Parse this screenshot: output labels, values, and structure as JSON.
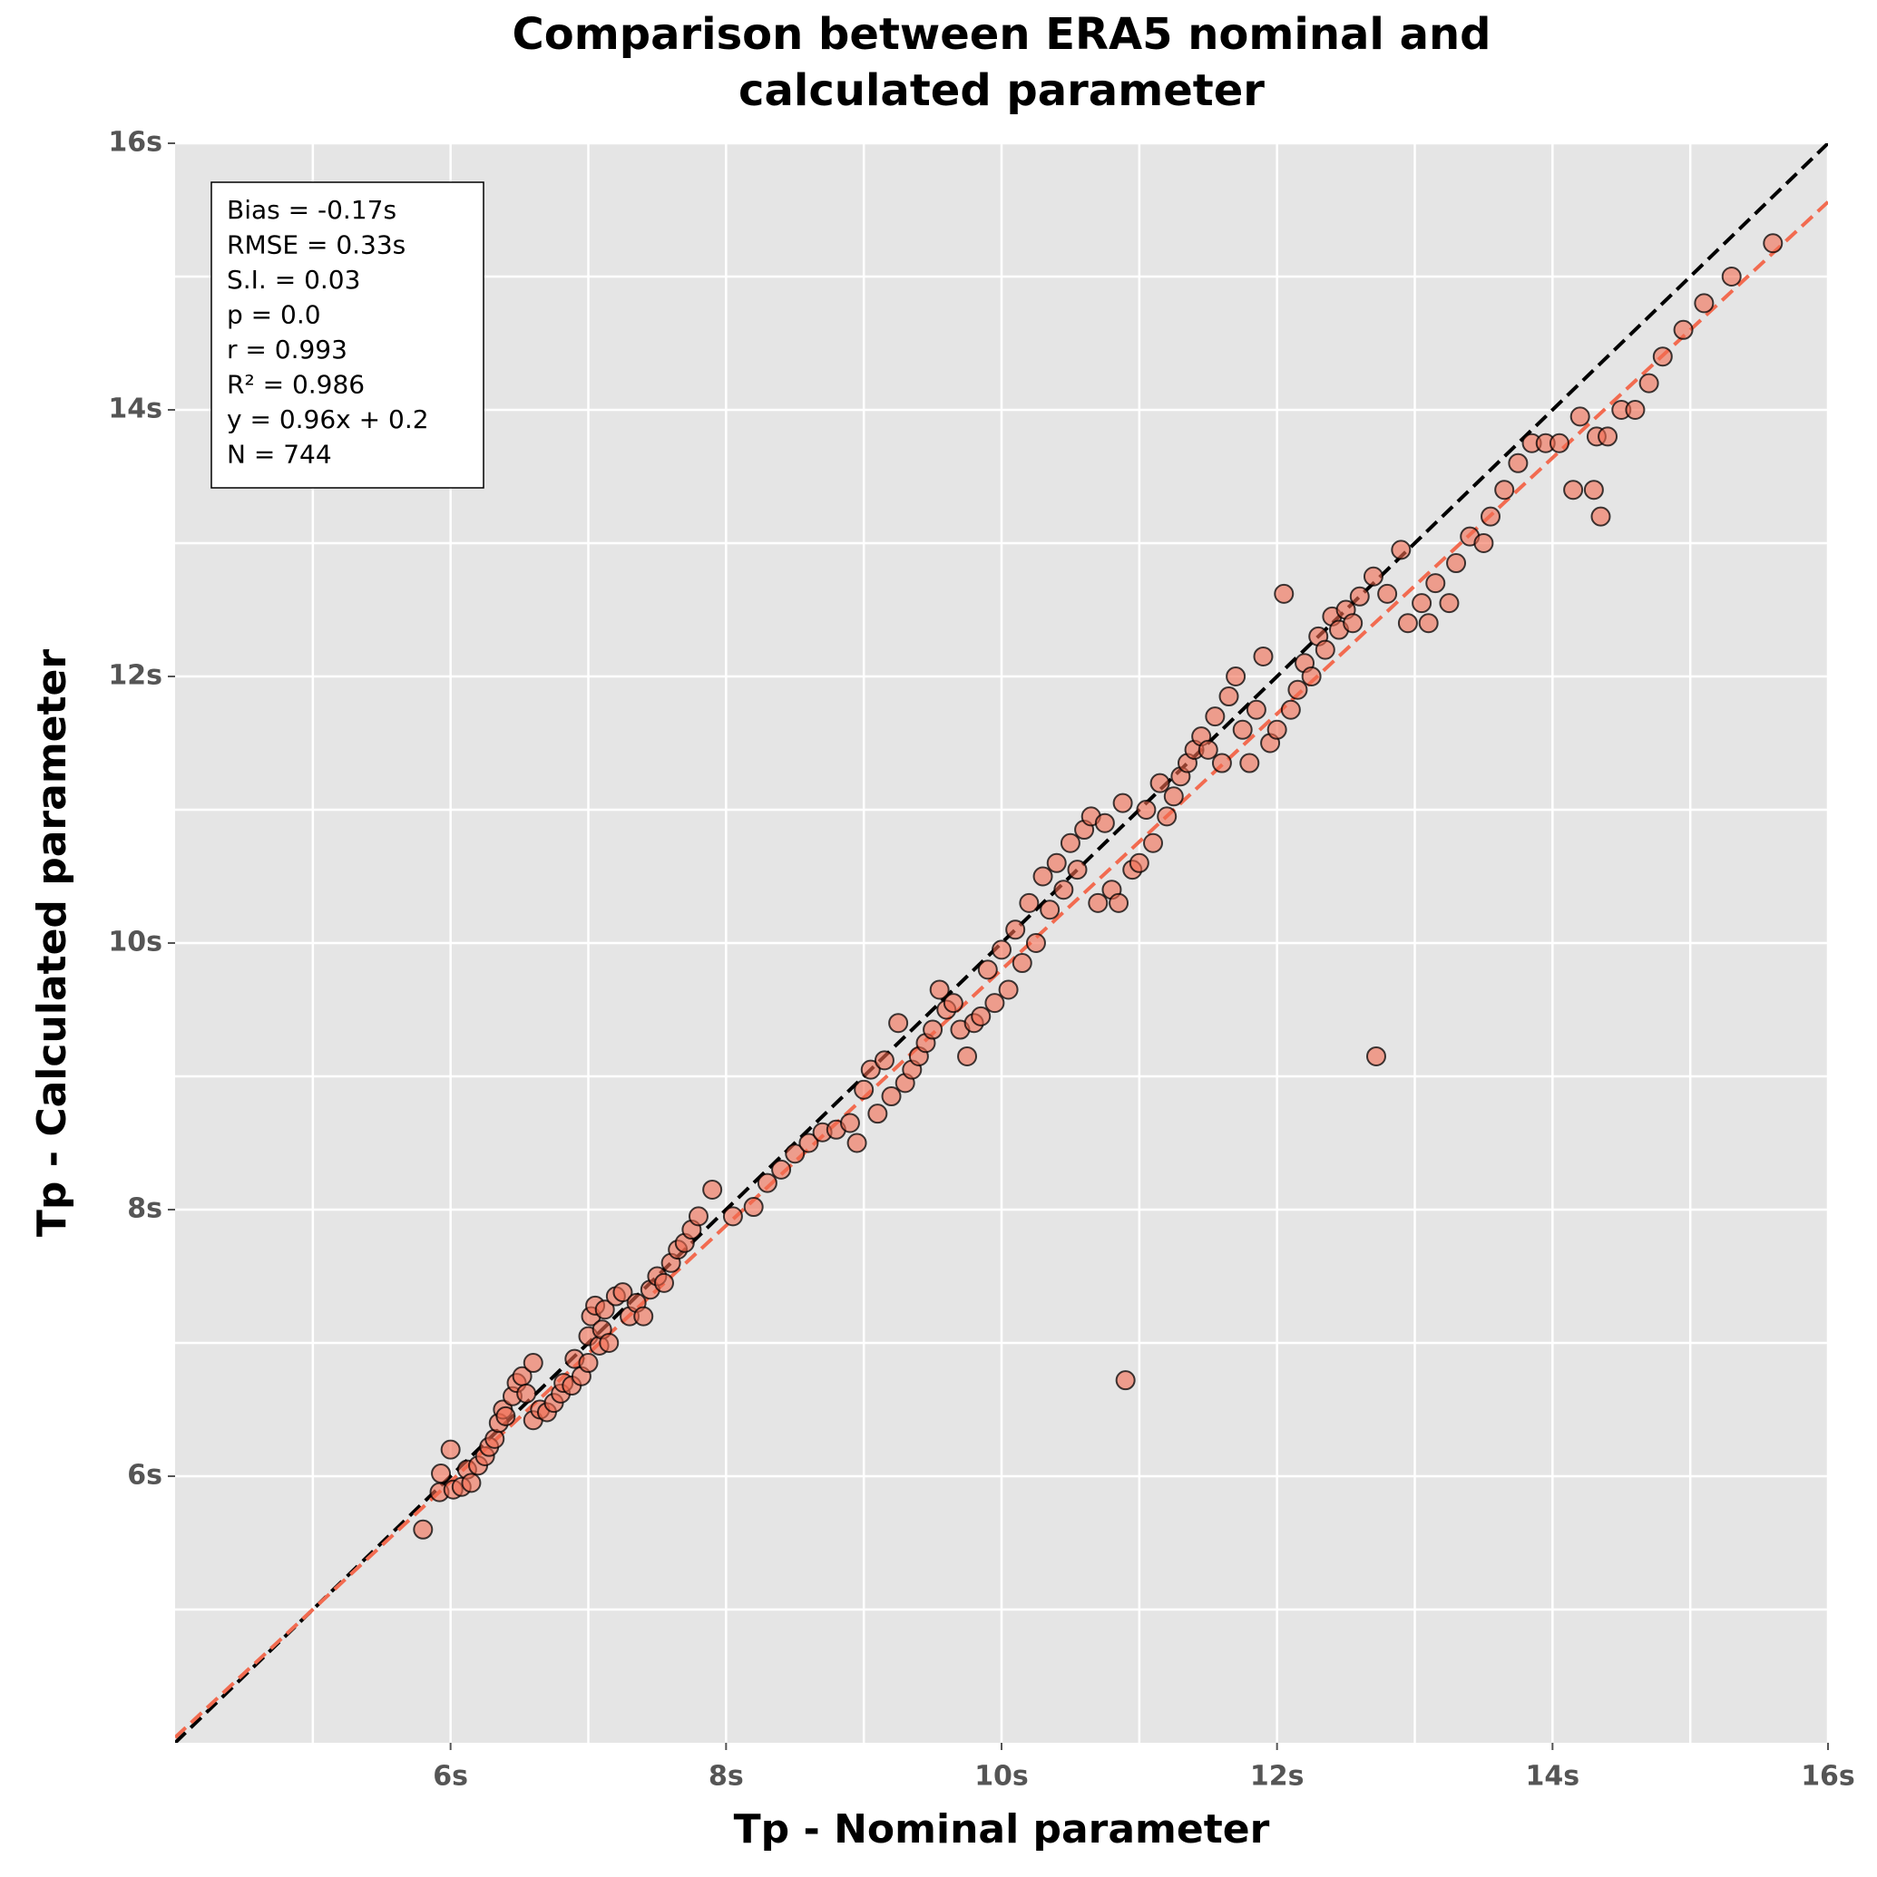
{
  "chart_data": {
    "type": "scatter",
    "title": [
      "Comparison between ERA5 nominal and",
      "calculated parameter"
    ],
    "xlabel": "Tp - Nominal parameter",
    "ylabel": "Tp - Calculated parameter",
    "annotation": [
      "Bias = -0.17s",
      "RMSE = 0.33s",
      "S.I. = 0.03",
      "p = 0.0",
      "r = 0.993",
      "R² = 0.986",
      "y = 0.96x + 0.2",
      "N = 744"
    ],
    "xlim": [
      4,
      16
    ],
    "ylim": [
      4,
      16
    ],
    "xticks": [
      {
        "value": 6,
        "label": "6s"
      },
      {
        "value": 8,
        "label": "8s"
      },
      {
        "value": 10,
        "label": "10s"
      },
      {
        "value": 12,
        "label": "12s"
      },
      {
        "value": 14,
        "label": "14s"
      },
      {
        "value": 16,
        "label": "16s"
      }
    ],
    "yticks": [
      {
        "value": 6,
        "label": "6s"
      },
      {
        "value": 8,
        "label": "8s"
      },
      {
        "value": 10,
        "label": "10s"
      },
      {
        "value": 12,
        "label": "12s"
      },
      {
        "value": 14,
        "label": "14s"
      },
      {
        "value": 16,
        "label": "16s"
      }
    ],
    "xminor": [
      5,
      7,
      9,
      11,
      13,
      15
    ],
    "yminor": [
      5,
      7,
      9,
      11,
      13,
      15
    ],
    "grid": true,
    "lines": [
      {
        "slope": 1,
        "intercept": 0,
        "color": "#000000"
      },
      {
        "slope": 0.96,
        "intercept": 0.2,
        "color": "#f26b50"
      }
    ],
    "series": [
      {
        "color": "#f26b50",
        "x": [
          5.8,
          5.92,
          5.93,
          6.0,
          6.02,
          6.08,
          6.12,
          6.15,
          6.2,
          6.25,
          6.28,
          6.32,
          6.35,
          6.38,
          6.4,
          6.45,
          6.48,
          6.52,
          6.55,
          6.6,
          6.6,
          6.65,
          6.7,
          6.75,
          6.8,
          6.82,
          6.88,
          6.9,
          6.95,
          7.0,
          7.0,
          7.02,
          7.05,
          7.08,
          7.1,
          7.12,
          7.15,
          7.2,
          7.25,
          7.3,
          7.35,
          7.4,
          7.45,
          7.5,
          7.55,
          7.6,
          7.65,
          7.7,
          7.75,
          7.8,
          7.9,
          8.05,
          8.2,
          8.3,
          8.4,
          8.5,
          8.6,
          8.7,
          8.8,
          8.9,
          8.95,
          9.0,
          9.05,
          9.1,
          9.15,
          9.2,
          9.25,
          9.3,
          9.35,
          9.4,
          9.45,
          9.5,
          9.55,
          9.6,
          9.65,
          9.7,
          9.75,
          9.8,
          9.85,
          9.9,
          9.95,
          10.0,
          10.05,
          10.1,
          10.15,
          10.2,
          10.25,
          10.3,
          10.35,
          10.4,
          10.45,
          10.5,
          10.55,
          10.6,
          10.65,
          10.7,
          10.75,
          10.8,
          10.85,
          10.88,
          10.9,
          10.95,
          11.0,
          11.05,
          11.1,
          11.15,
          11.2,
          11.25,
          11.3,
          11.35,
          11.4,
          11.45,
          11.5,
          11.55,
          11.6,
          11.65,
          11.7,
          11.75,
          11.8,
          11.85,
          11.9,
          11.95,
          12.0,
          12.05,
          12.1,
          12.15,
          12.2,
          12.25,
          12.3,
          12.35,
          12.4,
          12.45,
          12.5,
          12.55,
          12.6,
          12.7,
          12.72,
          12.8,
          12.9,
          12.95,
          13.05,
          13.1,
          13.15,
          13.25,
          13.3,
          13.4,
          13.5,
          13.55,
          13.65,
          13.75,
          13.85,
          13.95,
          14.05,
          14.15,
          14.2,
          14.3,
          14.32,
          14.35,
          14.4,
          14.5,
          14.6,
          14.7,
          14.8,
          14.95,
          15.1,
          15.3,
          15.6
        ],
        "values": [
          5.6,
          5.88,
          6.02,
          6.2,
          5.9,
          5.92,
          6.05,
          5.95,
          6.08,
          6.15,
          6.22,
          6.28,
          6.4,
          6.5,
          6.45,
          6.6,
          6.7,
          6.75,
          6.62,
          6.85,
          6.42,
          6.5,
          6.48,
          6.55,
          6.62,
          6.7,
          6.68,
          6.88,
          6.75,
          6.85,
          7.05,
          7.2,
          7.28,
          6.98,
          7.1,
          7.25,
          7.0,
          7.35,
          7.38,
          7.2,
          7.3,
          7.2,
          7.4,
          7.5,
          7.45,
          7.6,
          7.7,
          7.75,
          7.85,
          7.95,
          8.15,
          7.95,
          8.02,
          8.2,
          8.3,
          8.42,
          8.5,
          8.58,
          8.6,
          8.65,
          8.5,
          8.9,
          9.05,
          8.72,
          9.12,
          8.85,
          9.4,
          8.95,
          9.05,
          9.15,
          9.25,
          9.35,
          9.65,
          9.5,
          9.55,
          9.35,
          9.15,
          9.4,
          9.45,
          9.8,
          9.55,
          9.95,
          9.65,
          10.1,
          9.85,
          10.3,
          10.0,
          10.5,
          10.25,
          10.6,
          10.4,
          10.75,
          10.55,
          10.85,
          10.95,
          10.3,
          10.9,
          10.4,
          10.3,
          11.05,
          6.72,
          10.55,
          10.6,
          11.0,
          10.75,
          11.2,
          10.95,
          11.1,
          11.25,
          11.35,
          11.45,
          11.55,
          11.45,
          11.7,
          11.35,
          11.85,
          12.0,
          11.6,
          11.35,
          11.75,
          12.15,
          11.5,
          11.6,
          12.62,
          11.75,
          11.9,
          12.1,
          12.0,
          12.3,
          12.2,
          12.45,
          12.35,
          12.5,
          12.4,
          12.6,
          12.75,
          9.15,
          12.62,
          12.95,
          12.4,
          12.55,
          12.4,
          12.7,
          12.55,
          12.85,
          13.05,
          13.0,
          13.2,
          13.4,
          13.6,
          13.75,
          13.75,
          13.75,
          13.4,
          13.95,
          13.4,
          13.8,
          13.2,
          13.8,
          14.0,
          14.0,
          14.2,
          14.4,
          14.6,
          14.8,
          15.0,
          15.25
        ]
      }
    ]
  }
}
